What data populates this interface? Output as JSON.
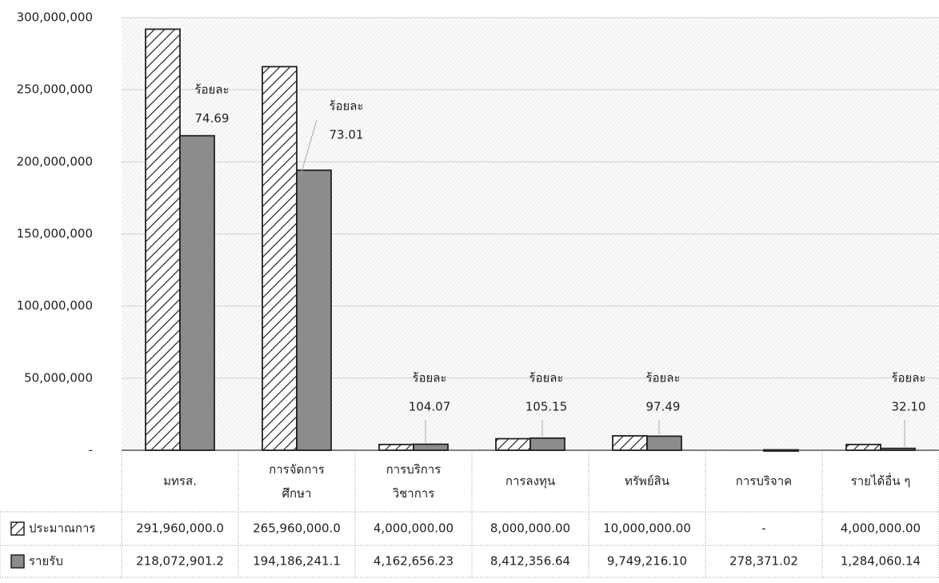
{
  "chart_data": {
    "type": "bar",
    "categories": [
      "มทรส.",
      "การจัดการ\nศึกษา",
      "การบริการ\nวิชาการ",
      "การลงทุน",
      "ทรัพย์สิน",
      "การบริจาค",
      "รายได้อื่น ๆ"
    ],
    "series": [
      {
        "name": "ประมาณการ",
        "color": "#ffffff",
        "pattern": "hatch",
        "values": [
          291960000.0,
          265960000.0,
          4000000.0,
          8000000.0,
          10000000.0,
          null,
          4000000.0
        ],
        "value_labels": [
          "291,960,000.0",
          "265,960,000.0",
          "4,000,000.00",
          "8,000,000.00",
          "10,000,000.00",
          "-",
          "4,000,000.00"
        ]
      },
      {
        "name": "รายรับ",
        "color": "#8c8c8c",
        "values": [
          218072901.2,
          194186241.1,
          4162656.23,
          8412356.64,
          9749216.1,
          278371.02,
          1284060.14
        ],
        "value_labels": [
          "218,072,901.2",
          "194,186,241.1",
          "4,162,656.23",
          "8,412,356.64",
          "9,749,216.10",
          "278,371.02",
          "1,284,060.14"
        ]
      }
    ],
    "annotation_prefix": "ร้อยละ",
    "percentages": [
      74.69,
      73.01,
      104.07,
      105.15,
      97.49,
      null,
      32.1
    ],
    "percentage_labels": [
      "74.69",
      "73.01",
      "104.07",
      "105.15",
      "97.49",
      null,
      "32.10"
    ],
    "ylim": [
      0,
      300000000
    ],
    "yticks": [
      {
        "value": 0,
        "label": "-"
      },
      {
        "value": 50000000,
        "label": "50,000,000"
      },
      {
        "value": 100000000,
        "label": "100,000,000"
      },
      {
        "value": 150000000,
        "label": "150,000,000"
      },
      {
        "value": 200000000,
        "label": "200,000,000"
      },
      {
        "value": 250000000,
        "label": "250,000,000"
      },
      {
        "value": 300000000,
        "label": "300,000,000"
      }
    ],
    "grid": true
  }
}
